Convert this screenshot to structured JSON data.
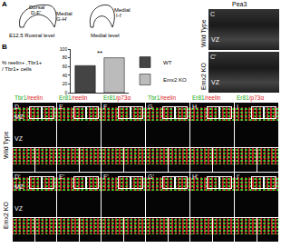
{
  "panel_a": {
    "label": "A",
    "rostral": {
      "caption": "E12.5 Rostral level",
      "regions": [
        {
          "name": "Dorsal",
          "panels": "D-F'"
        },
        {
          "name": "Medial",
          "panels": "G-H'"
        }
      ]
    },
    "medial": {
      "caption": "Medial level",
      "regions": [
        {
          "name": "Medial",
          "panels": "I-I'"
        }
      ]
    }
  },
  "chart_data": {
    "type": "bar",
    "label": "B",
    "y_label": [
      "% reelin+ ,Tbr1+",
      "/ Tbr1+ cells"
    ],
    "categories": [
      "WT",
      "Emx2 KO"
    ],
    "values": [
      62,
      80
    ],
    "colors": [
      "#444444",
      "#bbbbbb"
    ],
    "ylim": [
      0,
      100
    ],
    "yticks": [
      0,
      20,
      40,
      60,
      80,
      100
    ],
    "tick_labels": "y",
    "legend": "right",
    "annotations": [
      {
        "text": "**",
        "x": 0.5,
        "y": 90
      }
    ]
  },
  "panel_c": {
    "title": "Pea3",
    "images": [
      {
        "letter": "C",
        "row": "Wild Type",
        "zone": "VZ"
      },
      {
        "letter": "C'",
        "row": "Emx2 KO",
        "zone": "VZ"
      }
    ]
  },
  "panels_d_i": {
    "columns": [
      {
        "markers": [
          {
            "text": "Tbr1",
            "color": "#22aa22"
          },
          {
            "text": "/reelin",
            "color": "#dd2222"
          }
        ],
        "zones": [
          "MZ",
          "VZ"
        ]
      },
      {
        "markers": [
          {
            "text": "Er81",
            "color": "#22aa22"
          },
          {
            "text": "/reelin",
            "color": "#dd2222"
          }
        ]
      },
      {
        "markers": [
          {
            "text": "Er81",
            "color": "#22aa22"
          },
          {
            "text": "/p73α",
            "color": "#dd2222"
          }
        ]
      },
      {
        "markers": [
          {
            "text": "Tbr1",
            "color": "#22aa22"
          },
          {
            "text": "/reelin",
            "color": "#dd2222"
          }
        ]
      },
      {
        "markers": [
          {
            "text": "Er81",
            "color": "#22aa22"
          },
          {
            "text": "/reelin",
            "color": "#dd2222"
          }
        ]
      },
      {
        "markers": [
          {
            "text": "Er81",
            "color": "#22aa22"
          },
          {
            "text": "/p73α",
            "color": "#dd2222"
          }
        ]
      }
    ],
    "rows": [
      {
        "name": "Wild Type",
        "letters": [
          "D",
          "E",
          "F",
          "G",
          "H",
          "I"
        ]
      },
      {
        "name": "Emx2 KO",
        "letters": [
          "D'",
          "E'",
          "F'",
          "G'",
          "H'",
          "I'"
        ]
      }
    ]
  }
}
